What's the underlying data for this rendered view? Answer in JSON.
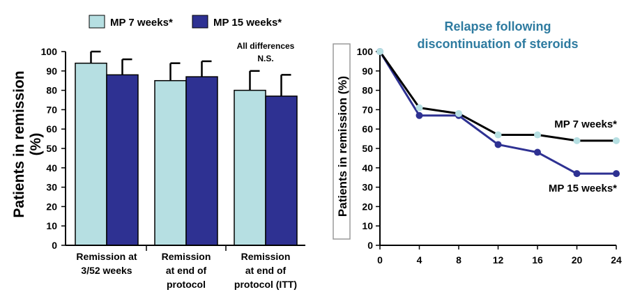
{
  "chart_data": [
    {
      "type": "bar",
      "title": "",
      "xlabel": "",
      "ylabel": "Patients in remission (%)",
      "ylabel_lines": [
        "Patients in remission",
        "(%)"
      ],
      "ylim": [
        0,
        100
      ],
      "yticks": [
        "0",
        "10",
        "20",
        "30",
        "40",
        "50",
        "60",
        "70",
        "80",
        "90",
        "100"
      ],
      "categories": [
        "Remission at 3/52 weeks",
        "Remission at end of protocol",
        "Remission at end of protocol (ITT)"
      ],
      "category_lines": [
        [
          "Remission at",
          "3/52 weeks"
        ],
        [
          "Remission",
          "at end of",
          "protocol"
        ],
        [
          "Remission",
          "at end of",
          "protocol (ITT)"
        ]
      ],
      "series": [
        {
          "name": "MP 7 weeks*",
          "color": "#b6dfe2",
          "values": [
            94,
            85,
            80
          ],
          "errors": [
            6,
            9,
            10
          ]
        },
        {
          "name": "MP 15 weeks*",
          "color": "#2e3192",
          "values": [
            88,
            87,
            77
          ],
          "errors": [
            8,
            8,
            11
          ]
        }
      ],
      "annotation_lines": [
        "All differences",
        "N.S."
      ],
      "legend_position": "top"
    },
    {
      "type": "line",
      "title_lines": [
        "Relapse following",
        "discontinuation of steroids"
      ],
      "title_color": "#2e7ba0",
      "xlabel": "",
      "ylabel": "Patients in remission (%)",
      "ylim": [
        0,
        100
      ],
      "xlim": [
        0,
        24
      ],
      "yticks": [
        "0",
        "10",
        "20",
        "30",
        "40",
        "50",
        "60",
        "70",
        "80",
        "90",
        "100"
      ],
      "x": [
        0,
        4,
        8,
        12,
        16,
        20,
        24
      ],
      "xticks": [
        "0",
        "4",
        "8",
        "12",
        "16",
        "20",
        "24"
      ],
      "series": [
        {
          "name": "MP 7 weeks*",
          "color": "#000000",
          "marker_color": "#b6dfe2",
          "values": [
            100,
            71,
            68,
            57,
            57,
            54,
            54
          ]
        },
        {
          "name": "MP 15 weeks*",
          "color": "#2e3192",
          "marker_color": "#2e3192",
          "values": [
            100,
            67,
            67,
            52,
            48,
            37,
            37
          ]
        }
      ]
    }
  ]
}
